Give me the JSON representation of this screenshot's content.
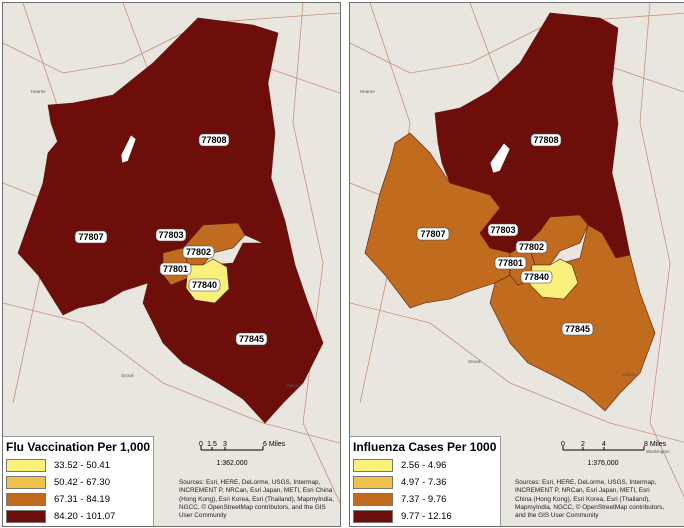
{
  "maps": [
    {
      "legend_title": "Flu Vaccination Per 1,000",
      "legend": [
        {
          "label": "33.52 - 50.41",
          "color": "#f7f07a"
        },
        {
          "label": "50.42 - 67.30",
          "color": "#f0c14a"
        },
        {
          "label": "67.31 - 84.19",
          "color": "#c06b1e"
        },
        {
          "label": "84.20 - 101.07",
          "color": "#6e0e0a"
        }
      ],
      "zip_colors": {
        "77808": "#6e0e0a",
        "77807": "#6e0e0a",
        "77803": "#6e0e0a",
        "77845": "#6e0e0a",
        "77802": "#c06b1e",
        "77801": "#c06b1e",
        "77840": "#f7f07a"
      },
      "scale_ticks": [
        "0",
        "1.5",
        "3",
        "6 Miles"
      ],
      "scale_ratio": "1:362,000",
      "sources": [
        "Sources: Esri, HERE, DeLorme, USGS, Intermap,",
        "INCREMENT P, NRCan, Esri Japan, METI, Esri China",
        "(Hong Kong), Esri Korea, Esri (Thailand), MapmyIndia,",
        "NGCC, © OpenStreetMap contributors, and the GIS",
        "User Community"
      ]
    },
    {
      "legend_title": "Influenza Cases Per 1000",
      "legend": [
        {
          "label": "2.56 - 4.96",
          "color": "#f7f07a"
        },
        {
          "label": "4.97 - 7.36",
          "color": "#f0c14a"
        },
        {
          "label": "7.37 - 9.76",
          "color": "#c06b1e"
        },
        {
          "label": "9.77 - 12.16",
          "color": "#6e0e0a"
        }
      ],
      "zip_colors": {
        "77808": "#6e0e0a",
        "77807": "#c06b1e",
        "77803": "#6e0e0a",
        "77845": "#c06b1e",
        "77802": "#c06b1e",
        "77801": "#c06b1e",
        "77840": "#f7f07a"
      },
      "scale_ticks": [
        "0",
        "2",
        "4",
        "8 Miles"
      ],
      "scale_ratio": "1:376,000",
      "sources": [
        "Sources: Esri, HERE, DeLorme, USGS, Intermap,",
        "INCREMENT P, NRCan, Esri Japan, METI, Esri",
        "China (Hong Kong), Esri Korea, Esri (Thailand),",
        "MapmyIndia, NGCC, © OpenStreetMap contributors,",
        "and the GIS User Community"
      ]
    }
  ],
  "zip_labels": {
    "z77808": "77808",
    "z77807": "77807",
    "z77803": "77803",
    "z77802": "77802",
    "z77801": "77801",
    "z77840": "77840",
    "z77845": "77845"
  },
  "place_names": {
    "hearne": "Hearne",
    "snook": "Snook",
    "millican": "Millican",
    "washington": "Washington"
  },
  "colors": {
    "basemap": "#e9e6df",
    "road": "#c98f7a"
  }
}
